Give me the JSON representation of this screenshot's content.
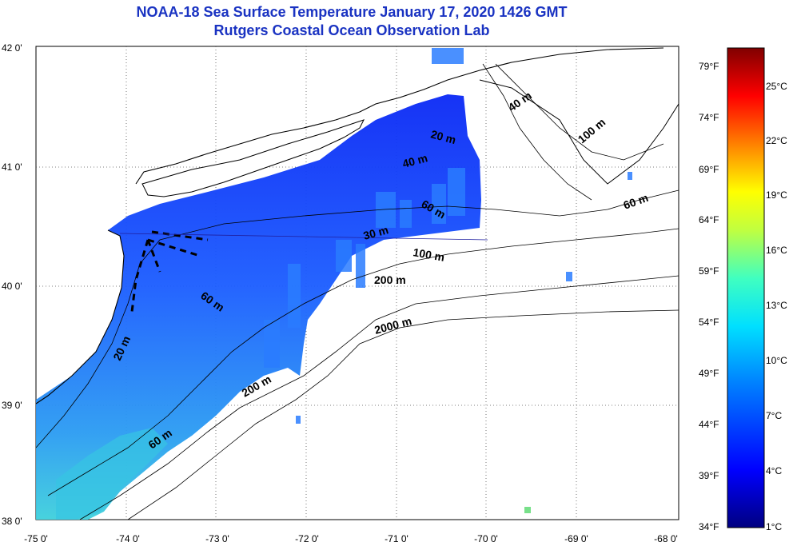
{
  "header": {
    "title_line1": "NOAA-18 Sea Surface Temperature January 17, 2020 1426 GMT",
    "title_line2": "Rutgers Coastal Ocean Observation Lab"
  },
  "map": {
    "lat_labels": [
      "42 0'",
      "41 0'",
      "40 0'",
      "39 0'",
      "38 0'"
    ],
    "lon_labels": [
      "-75 0'",
      "-74 0'",
      "-73 0'",
      "-72 0'",
      "-71 0'",
      "-70 0'",
      "-69 0'",
      "-68 0'"
    ],
    "contour_labels": [
      "40 m",
      "100 m",
      "20 m",
      "40 m",
      "60 m",
      "60 m",
      "30 m",
      "100 m",
      "200 m",
      "60 m",
      "2000 m",
      "20 m",
      "200 m",
      "60 m"
    ],
    "colors": {
      "land": "#ffffff",
      "cold_water": "#1030ff",
      "mid_water": "#1f7cff",
      "warm_water": "#39c8e6"
    }
  },
  "colorbar": {
    "fahrenheit_labels": [
      "79°F",
      "74°F",
      "69°F",
      "64°F",
      "59°F",
      "54°F",
      "49°F",
      "44°F",
      "39°F",
      "34°F"
    ],
    "celsius_labels": [
      "25°C",
      "22°C",
      "19°C",
      "16°C",
      "13°C",
      "10°C",
      "7°C",
      "4°C",
      "1°C"
    ],
    "gradient_stops": [
      "#000080",
      "#0000ff",
      "#0080ff",
      "#00e0ff",
      "#40ffc0",
      "#c0ff40",
      "#ffff00",
      "#ff8000",
      "#ff0000",
      "#800000"
    ]
  }
}
